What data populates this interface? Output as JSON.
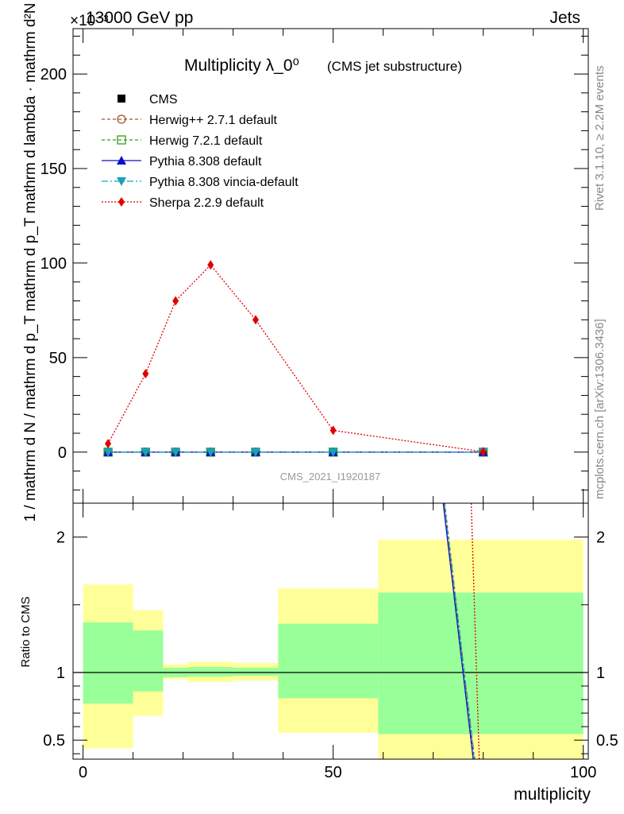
{
  "header": {
    "energy_label": "13000 GeV pp",
    "process_label": "Jets",
    "exponent_label": "×10⁻³",
    "side_label_top": "Rivet 3.1.10, ≥ 2.2M events",
    "side_label_bottom": "mcplots.cern.ch [arXiv:1306.3436]"
  },
  "chart_data": {
    "type": "line",
    "title": "Multiplicity λ_0⁰",
    "subtitle": "(CMS jet substructure)",
    "watermark": "CMS_2021_I1920187",
    "xlabel": "multiplicity",
    "ylabel_main": "1 / mathrm d N / mathrm d p_T mathrm d p_T mathrm d lambda · mathrm d²N",
    "ylabel_ratio": "Ratio to CMS",
    "xlim": [
      -2,
      101
    ],
    "ylim_main": [
      -27,
      224
    ],
    "ylim_ratio": [
      0.36,
      2.25
    ],
    "x_ticks": [
      0,
      50,
      100
    ],
    "y_ticks_main": [
      0,
      50,
      100,
      150,
      200
    ],
    "y_ticks_ratio": [
      0.5,
      1,
      2
    ],
    "x": [
      5,
      12.5,
      18.5,
      25.5,
      34.5,
      50,
      80
    ],
    "bin_edges": [
      0,
      10,
      16,
      21,
      30,
      39,
      59,
      100
    ],
    "series": [
      {
        "name": "CMS",
        "color": "#000000",
        "marker": "square",
        "values": [
          0,
          0,
          0,
          0,
          0,
          0,
          0
        ]
      },
      {
        "name": "Herwig++ 2.7.1 default",
        "color": "#a0522d",
        "marker": "circle-open",
        "values": [
          0,
          0,
          0,
          0,
          0,
          0,
          0
        ]
      },
      {
        "name": "Herwig 7.2.1 default",
        "color": "#3a9a1a",
        "marker": "square-open",
        "values": [
          0,
          0,
          0,
          0,
          0,
          0,
          0
        ]
      },
      {
        "name": "Pythia 8.308 default",
        "color": "#1010c8",
        "marker": "triangle-up",
        "values": [
          0,
          0,
          0,
          0,
          0,
          0,
          0
        ]
      },
      {
        "name": "Pythia 8.308 vincia-default",
        "color": "#1aa0b8",
        "marker": "triangle-down",
        "values": [
          0,
          0,
          0,
          0,
          0,
          0,
          0
        ]
      },
      {
        "name": "Sherpa 2.2.9 default",
        "color": "#e00000",
        "marker": "diamond",
        "values": [
          4.5,
          41.5,
          80,
          99,
          70,
          11.5,
          0.2
        ]
      }
    ],
    "ratio_bands": {
      "inner_color": "#99ff99",
      "outer_color": "#ffff99",
      "inner_low": [
        0.77,
        0.86,
        0.965,
        0.97,
        0.975,
        0.81,
        0.545
      ],
      "inner_high": [
        1.37,
        1.31,
        1.035,
        1.04,
        1.035,
        1.36,
        1.59
      ],
      "outer_low": [
        0.44,
        0.68,
        0.95,
        0.93,
        0.94,
        0.555,
        0.36
      ],
      "outer_high": [
        1.65,
        1.46,
        1.06,
        1.08,
        1.07,
        1.62,
        1.98
      ]
    },
    "ratio_lines": [
      {
        "name": "Herwig++ 2.7.1 default",
        "color": "#a0522d",
        "dash": "4,3",
        "points": [
          [
            72.3,
            2.25
          ],
          [
            78.2,
            0.36
          ]
        ]
      },
      {
        "name": "Herwig 7.2.1 default",
        "color": "#3a9a1a",
        "dash": "4,3",
        "points": [
          [
            72.1,
            2.25
          ],
          [
            78.0,
            0.36
          ]
        ]
      },
      {
        "name": "Pythia 8.308 default",
        "color": "#1010c8",
        "dash": "",
        "points": [
          [
            72.0,
            2.25
          ],
          [
            78.0,
            0.36
          ]
        ]
      },
      {
        "name": "Pythia 8.308 vincia-default",
        "color": "#1aa0b8",
        "dash": "8,3,2,3",
        "points": [
          [
            72.2,
            2.25
          ],
          [
            78.3,
            0.36
          ]
        ]
      },
      {
        "name": "Sherpa 2.2.9 default",
        "color": "#e00000",
        "dash": "2,2",
        "points": [
          [
            77.6,
            2.25
          ],
          [
            79.2,
            0.36
          ]
        ]
      }
    ]
  }
}
